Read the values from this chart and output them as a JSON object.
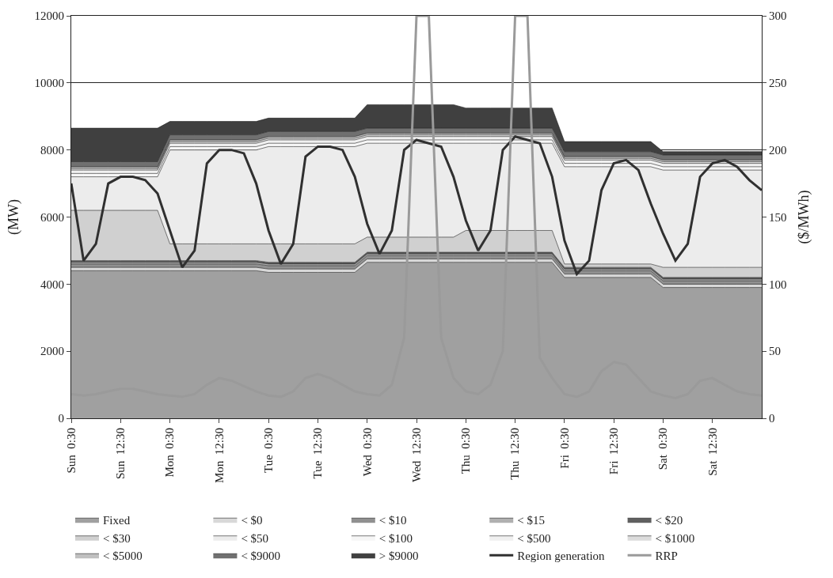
{
  "chart_data": {
    "type": "area",
    "stacked": true,
    "ylabel": "(MW)",
    "y2label": "($/MWh)",
    "categories": [
      "Sun  0:30",
      null,
      null,
      null,
      "Sun  12:30",
      null,
      null,
      null,
      "Mon  0:30",
      null,
      null,
      null,
      "Mon  12:30",
      null,
      null,
      null,
      "Tue  0:30",
      null,
      null,
      null,
      "Tue  12:30",
      null,
      null,
      null,
      "Wed  0:30",
      null,
      null,
      null,
      "Wed  12:30",
      null,
      null,
      null,
      "Thu  0:30",
      null,
      null,
      null,
      "Thu  12:30",
      null,
      null,
      null,
      "Fri  0:30",
      null,
      null,
      null,
      "Fri  12:30",
      null,
      null,
      null,
      "Sat  0:30",
      null,
      null,
      null,
      "Sat  12:30",
      null,
      null,
      null,
      null
    ],
    "ylim": [
      0,
      12000
    ],
    "yticks": [
      0,
      2000,
      4000,
      6000,
      8000,
      10000,
      12000
    ],
    "y2lim": [
      0,
      300
    ],
    "y2ticks": [
      0,
      50,
      100,
      150,
      200,
      250,
      300
    ],
    "grid": "y",
    "legend": "bottom",
    "series": [
      {
        "name": "Fixed",
        "color": "#a0a0a0",
        "values": [
          4400,
          4400,
          4400,
          4400,
          4400,
          4400,
          4400,
          4400,
          4400,
          4400,
          4400,
          4400,
          4400,
          4400,
          4400,
          4400,
          4350,
          4350,
          4350,
          4350,
          4350,
          4350,
          4350,
          4350,
          4650,
          4650,
          4650,
          4650,
          4650,
          4650,
          4650,
          4650,
          4650,
          4650,
          4650,
          4650,
          4650,
          4650,
          4650,
          4650,
          4200,
          4200,
          4200,
          4200,
          4200,
          4200,
          4200,
          4200,
          3900,
          3900,
          3900,
          3900,
          3900,
          3900,
          3900,
          3900,
          3900
        ]
      },
      {
        "name": "< $0",
        "color": "#d8d8d8",
        "values": [
          100,
          100,
          100,
          100,
          100,
          100,
          100,
          100,
          100,
          100,
          100,
          100,
          100,
          100,
          100,
          100,
          100,
          100,
          100,
          100,
          100,
          100,
          100,
          100,
          100,
          100,
          100,
          100,
          100,
          100,
          100,
          100,
          100,
          100,
          100,
          100,
          100,
          100,
          100,
          100,
          100,
          100,
          100,
          100,
          100,
          100,
          100,
          100,
          100,
          100,
          100,
          100,
          100,
          100,
          100,
          100,
          100
        ]
      },
      {
        "name": "< $10",
        "color": "#909090",
        "values": [
          100,
          100,
          100,
          100,
          100,
          100,
          100,
          100,
          100,
          100,
          100,
          100,
          100,
          100,
          100,
          100,
          100,
          100,
          100,
          100,
          100,
          100,
          100,
          100,
          100,
          100,
          100,
          100,
          100,
          100,
          100,
          100,
          100,
          100,
          100,
          100,
          100,
          100,
          100,
          100,
          100,
          100,
          100,
          100,
          100,
          100,
          100,
          100,
          100,
          100,
          100,
          100,
          100,
          100,
          100,
          100,
          100
        ]
      },
      {
        "name": "< $15",
        "color": "#b0b0b0",
        "values": [
          50,
          50,
          50,
          50,
          50,
          50,
          50,
          50,
          50,
          50,
          50,
          50,
          50,
          50,
          50,
          50,
          50,
          50,
          50,
          50,
          50,
          50,
          50,
          50,
          50,
          50,
          50,
          50,
          50,
          50,
          50,
          50,
          50,
          50,
          50,
          50,
          50,
          50,
          50,
          50,
          50,
          50,
          50,
          50,
          50,
          50,
          50,
          50,
          50,
          50,
          50,
          50,
          50,
          50,
          50,
          50,
          50
        ]
      },
      {
        "name": "< $20",
        "color": "#606060",
        "values": [
          50,
          50,
          50,
          50,
          50,
          50,
          50,
          50,
          50,
          50,
          50,
          50,
          50,
          50,
          50,
          50,
          50,
          50,
          50,
          50,
          50,
          50,
          50,
          50,
          50,
          50,
          50,
          50,
          50,
          50,
          50,
          50,
          50,
          50,
          50,
          50,
          50,
          50,
          50,
          50,
          50,
          50,
          50,
          50,
          50,
          50,
          50,
          50,
          50,
          50,
          50,
          50,
          50,
          50,
          50,
          50,
          50
        ]
      },
      {
        "name": "< $30",
        "color": "#d0d0d0",
        "values": [
          1500,
          1500,
          1500,
          1500,
          1500,
          1500,
          1500,
          1500,
          500,
          500,
          500,
          500,
          500,
          500,
          500,
          500,
          550,
          550,
          550,
          550,
          550,
          550,
          550,
          550,
          450,
          450,
          450,
          450,
          450,
          450,
          450,
          450,
          650,
          650,
          650,
          650,
          650,
          650,
          650,
          650,
          100,
          100,
          100,
          100,
          100,
          100,
          100,
          100,
          300,
          300,
          300,
          300,
          300,
          300,
          300,
          300,
          300
        ]
      },
      {
        "name": "< $50",
        "color": "#ececec",
        "values": [
          1000,
          1000,
          1000,
          1000,
          1000,
          1000,
          1000,
          1000,
          2800,
          2800,
          2800,
          2800,
          2800,
          2800,
          2800,
          2800,
          2900,
          2900,
          2900,
          2900,
          2900,
          2900,
          2900,
          2900,
          2800,
          2800,
          2800,
          2800,
          2800,
          2800,
          2800,
          2800,
          2600,
          2600,
          2600,
          2600,
          2600,
          2600,
          2600,
          2600,
          2900,
          2900,
          2900,
          2900,
          2900,
          2900,
          2900,
          2900,
          2900,
          2900,
          2900,
          2900,
          2900,
          2900,
          2900,
          2900,
          2900
        ]
      },
      {
        "name": "< $100",
        "color": "#f6f6f6",
        "values": [
          100,
          100,
          100,
          100,
          100,
          100,
          100,
          100,
          100,
          100,
          100,
          100,
          100,
          100,
          100,
          100,
          100,
          100,
          100,
          100,
          100,
          100,
          100,
          100,
          100,
          100,
          100,
          100,
          100,
          100,
          100,
          100,
          100,
          100,
          100,
          100,
          100,
          100,
          100,
          100,
          100,
          100,
          100,
          100,
          100,
          100,
          100,
          100,
          100,
          100,
          100,
          100,
          100,
          100,
          100,
          100,
          100
        ]
      },
      {
        "name": "< $500",
        "color": "#f0f0f0",
        "values": [
          100,
          100,
          100,
          100,
          100,
          100,
          100,
          100,
          100,
          100,
          100,
          100,
          100,
          100,
          100,
          100,
          100,
          100,
          100,
          100,
          100,
          100,
          100,
          100,
          100,
          100,
          100,
          100,
          100,
          100,
          100,
          100,
          100,
          100,
          100,
          100,
          100,
          100,
          100,
          100,
          100,
          100,
          100,
          100,
          100,
          100,
          100,
          100,
          100,
          100,
          100,
          100,
          100,
          100,
          100,
          100,
          100
        ]
      },
      {
        "name": "< $1000",
        "color": "#dcdcdc",
        "values": [
          50,
          50,
          50,
          50,
          50,
          50,
          50,
          50,
          50,
          50,
          50,
          50,
          50,
          50,
          50,
          50,
          50,
          50,
          50,
          50,
          50,
          50,
          50,
          50,
          50,
          50,
          50,
          50,
          50,
          50,
          50,
          50,
          50,
          50,
          50,
          50,
          50,
          50,
          50,
          50,
          50,
          50,
          50,
          50,
          50,
          50,
          50,
          50,
          50,
          50,
          50,
          50,
          50,
          50,
          50,
          50,
          50
        ]
      },
      {
        "name": "< $5000",
        "color": "#c0c0c0",
        "values": [
          50,
          50,
          50,
          50,
          50,
          50,
          50,
          50,
          50,
          50,
          50,
          50,
          50,
          50,
          50,
          50,
          50,
          50,
          50,
          50,
          50,
          50,
          50,
          50,
          50,
          50,
          50,
          50,
          50,
          50,
          50,
          50,
          50,
          50,
          50,
          50,
          50,
          50,
          50,
          50,
          50,
          50,
          50,
          50,
          50,
          50,
          50,
          50,
          50,
          50,
          50,
          50,
          50,
          50,
          50,
          50,
          50
        ]
      },
      {
        "name": "< $9000",
        "color": "#707070",
        "values": [
          150,
          150,
          150,
          150,
          150,
          150,
          150,
          150,
          150,
          150,
          150,
          150,
          150,
          150,
          150,
          150,
          150,
          150,
          150,
          150,
          150,
          150,
          150,
          150,
          150,
          150,
          150,
          150,
          150,
          150,
          150,
          150,
          150,
          150,
          150,
          150,
          150,
          150,
          150,
          150,
          150,
          150,
          150,
          150,
          150,
          150,
          150,
          150,
          150,
          150,
          150,
          150,
          150,
          150,
          150,
          150,
          150
        ]
      },
      {
        "name": "> $9000",
        "color": "#404040",
        "values": [
          1000,
          1000,
          1000,
          1000,
          1000,
          1000,
          1000,
          1000,
          400,
          400,
          400,
          400,
          400,
          400,
          400,
          400,
          400,
          400,
          400,
          400,
          400,
          400,
          400,
          400,
          700,
          700,
          700,
          700,
          700,
          700,
          700,
          700,
          600,
          600,
          600,
          600,
          600,
          600,
          600,
          600,
          300,
          300,
          300,
          300,
          300,
          300,
          300,
          300,
          100,
          100,
          100,
          100,
          100,
          100,
          100,
          100,
          100
        ]
      },
      {
        "name": "Region generation",
        "type": "line",
        "color": "#303030",
        "values": [
          7000,
          4700,
          5200,
          7000,
          7200,
          7200,
          7100,
          6700,
          5600,
          4500,
          5000,
          7600,
          8000,
          8000,
          7900,
          7000,
          5600,
          4600,
          5200,
          7800,
          8100,
          8100,
          8000,
          7200,
          5800,
          4900,
          5600,
          8000,
          8300,
          8200,
          8100,
          7200,
          5900,
          5000,
          5600,
          8000,
          8400,
          8300,
          8200,
          7200,
          5300,
          4300,
          4700,
          6800,
          7600,
          7700,
          7400,
          6400,
          5500,
          4700,
          5200,
          7200,
          7600,
          7700,
          7500,
          7100,
          6800
        ]
      },
      {
        "name": "RRP",
        "type": "line",
        "axis": "y2",
        "color": "#9a9a9a",
        "values": [
          18,
          17,
          18,
          20,
          22,
          22,
          20,
          18,
          17,
          16,
          18,
          25,
          30,
          28,
          24,
          20,
          17,
          16,
          20,
          30,
          33,
          30,
          25,
          20,
          18,
          17,
          25,
          60,
          300,
          300,
          60,
          30,
          20,
          18,
          25,
          50,
          300,
          300,
          45,
          30,
          18,
          16,
          20,
          35,
          42,
          40,
          30,
          20,
          17,
          15,
          18,
          28,
          30,
          25,
          20,
          18,
          17
        ]
      }
    ]
  }
}
